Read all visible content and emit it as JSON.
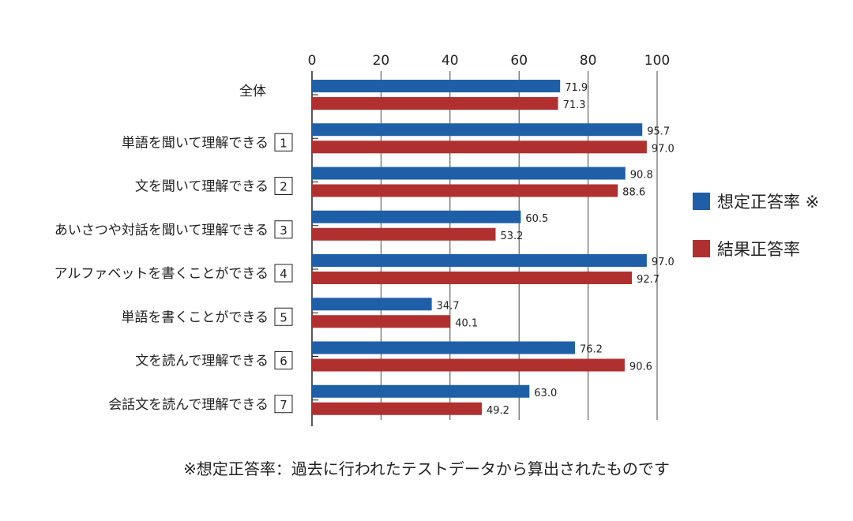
{
  "chart_data": {
    "type": "bar",
    "orientation": "horizontal",
    "categories": [
      "全体",
      "単語を聞いて理解できる",
      "文を聞いて理解できる",
      "あいさつや対話を聞いて理解できる",
      "アルファベットを書くことができる",
      "単語を書くことができる",
      "文を読んで理解できる",
      "会話文を読んで理解できる"
    ],
    "category_numbers": [
      "",
      "1",
      "2",
      "3",
      "4",
      "5",
      "6",
      "7"
    ],
    "series": [
      {
        "name": "想定正答率 ※",
        "color": "#1f5fa8",
        "values": [
          71.9,
          95.7,
          90.8,
          60.5,
          97.0,
          34.7,
          76.2,
          63.0
        ]
      },
      {
        "name": "結果正答率",
        "color": "#b03030",
        "values": [
          71.3,
          97.0,
          88.6,
          53.2,
          92.7,
          40.1,
          90.6,
          49.2
        ]
      }
    ],
    "xlim": [
      0,
      100
    ],
    "xticks": [
      0,
      20,
      40,
      60,
      80,
      100
    ],
    "grid": true,
    "legend_position": "right"
  },
  "footnote": "※想定正答率：過去に行われたテストデータから算出されたものです"
}
